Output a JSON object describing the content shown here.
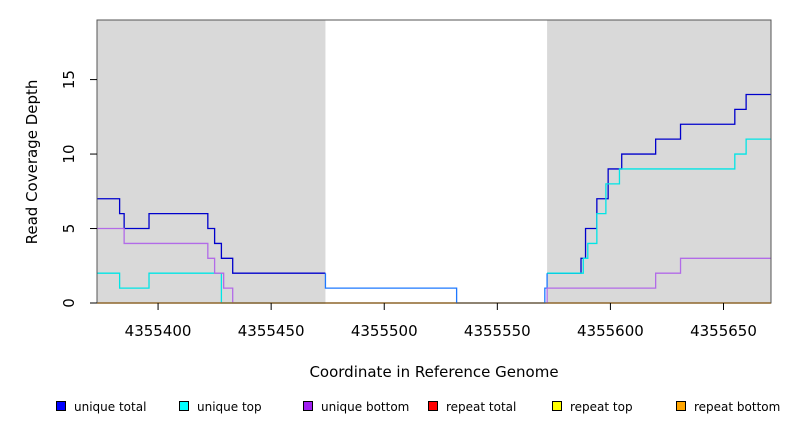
{
  "chart_data": {
    "type": "line",
    "title": "",
    "xlabel": "Coordinate in Reference Genome",
    "ylabel": "Read Coverage Depth",
    "xlim": [
      4355373,
      4355671
    ],
    "ylim": [
      0,
      19
    ],
    "x_ticks": [
      4355400,
      4355450,
      4355500,
      4355550,
      4355600,
      4355650
    ],
    "x_tick_labels": [
      "4355400",
      "4355450",
      "4355500",
      "4355550",
      "4355600",
      "4355650"
    ],
    "y_ticks": [
      0,
      5,
      10,
      15
    ],
    "y_tick_labels": [
      "0",
      "5",
      "10",
      "15"
    ],
    "shaded_regions": [
      {
        "x0": 4355373,
        "x1": 4355474,
        "color": "#d9d9d9"
      },
      {
        "x0": 4355572,
        "x1": 4355671,
        "color": "#d9d9d9"
      }
    ],
    "series": [
      {
        "name": "unique total",
        "color": "#0000cc",
        "points": [
          [
            4355373,
            7
          ],
          [
            4355383,
            7
          ],
          [
            4355383,
            6
          ],
          [
            4355385,
            6
          ],
          [
            4355385,
            5
          ],
          [
            4355396,
            5
          ],
          [
            4355396,
            6
          ],
          [
            4355422,
            6
          ],
          [
            4355422,
            5
          ],
          [
            4355425,
            5
          ],
          [
            4355425,
            4
          ],
          [
            4355428,
            4
          ],
          [
            4355428,
            3
          ],
          [
            4355433,
            3
          ],
          [
            4355433,
            2
          ],
          [
            4355474,
            2
          ]
        ]
      },
      {
        "name": "unique top",
        "color": "#00e5e5",
        "points": [
          [
            4355373,
            2
          ],
          [
            4355383,
            2
          ],
          [
            4355383,
            1
          ],
          [
            4355396,
            1
          ],
          [
            4355396,
            2
          ],
          [
            4355428,
            2
          ],
          [
            4355428,
            0
          ],
          [
            4355474,
            0
          ]
        ]
      },
      {
        "name": "unique bottom",
        "color": "#b26be8",
        "points": [
          [
            4355373,
            5
          ],
          [
            4355385,
            5
          ],
          [
            4355385,
            4
          ],
          [
            4355422,
            4
          ],
          [
            4355422,
            3
          ],
          [
            4355425,
            3
          ],
          [
            4355425,
            2
          ],
          [
            4355429,
            2
          ],
          [
            4355429,
            1
          ],
          [
            4355433,
            1
          ],
          [
            4355433,
            0
          ],
          [
            4355474,
            0
          ]
        ]
      },
      {
        "name": "repeat total",
        "color": "#ff0000",
        "points": [
          [
            4355373,
            0
          ],
          [
            4355671,
            0
          ]
        ]
      },
      {
        "name": "repeat top",
        "color": "#ffff00",
        "points": [
          [
            4355373,
            0
          ],
          [
            4355671,
            0
          ]
        ]
      },
      {
        "name": "repeat bottom",
        "color": "#ffa500",
        "points": [
          [
            4355373,
            0
          ],
          [
            4355671,
            0
          ]
        ]
      },
      {
        "name": "",
        "color": "#1e78ff",
        "points": [
          [
            4355474,
            2
          ],
          [
            4355474,
            1
          ],
          [
            4355532,
            1
          ],
          [
            4355532,
            0
          ],
          [
            4355571,
            0
          ],
          [
            4355571,
            1
          ],
          [
            4355572,
            1
          ],
          [
            4355572,
            2
          ]
        ]
      },
      {
        "name": "",
        "color": "#0000cc",
        "points": [
          [
            4355572,
            2
          ],
          [
            4355587,
            2
          ],
          [
            4355587,
            3
          ],
          [
            4355589,
            3
          ],
          [
            4355589,
            5
          ],
          [
            4355594,
            5
          ],
          [
            4355594,
            7
          ],
          [
            4355599,
            7
          ],
          [
            4355599,
            9
          ],
          [
            4355605,
            9
          ],
          [
            4355605,
            10
          ],
          [
            4355620,
            10
          ],
          [
            4355620,
            11
          ],
          [
            4355631,
            11
          ],
          [
            4355631,
            12
          ],
          [
            4355655,
            12
          ],
          [
            4355655,
            13
          ],
          [
            4355660,
            13
          ],
          [
            4355660,
            14
          ],
          [
            4355671,
            14
          ]
        ]
      },
      {
        "name": "",
        "color": "#00e5e5",
        "points": [
          [
            4355572,
            2
          ],
          [
            4355588,
            2
          ],
          [
            4355588,
            3
          ],
          [
            4355590,
            3
          ],
          [
            4355590,
            4
          ],
          [
            4355594,
            4
          ],
          [
            4355594,
            6
          ],
          [
            4355598,
            6
          ],
          [
            4355598,
            8
          ],
          [
            4355604,
            8
          ],
          [
            4355604,
            9
          ],
          [
            4355655,
            9
          ],
          [
            4355655,
            10
          ],
          [
            4355660,
            10
          ],
          [
            4355660,
            11
          ],
          [
            4355671,
            11
          ]
        ]
      },
      {
        "name": "",
        "color": "#b26be8",
        "points": [
          [
            4355572,
            0
          ],
          [
            4355572,
            1
          ],
          [
            4355620,
            1
          ],
          [
            4355620,
            2
          ],
          [
            4355631,
            2
          ],
          [
            4355631,
            3
          ],
          [
            4355671,
            3
          ]
        ]
      }
    ],
    "legend_position": "bottom",
    "legend": [
      {
        "label": "unique total",
        "color": "#0000ff"
      },
      {
        "label": "unique top",
        "color": "#00ffff"
      },
      {
        "label": "unique bottom",
        "color": "#a020f0"
      },
      {
        "label": "repeat total",
        "color": "#ff0000"
      },
      {
        "label": "repeat top",
        "color": "#ffff00"
      },
      {
        "label": "repeat bottom",
        "color": "#ffa500"
      }
    ]
  }
}
